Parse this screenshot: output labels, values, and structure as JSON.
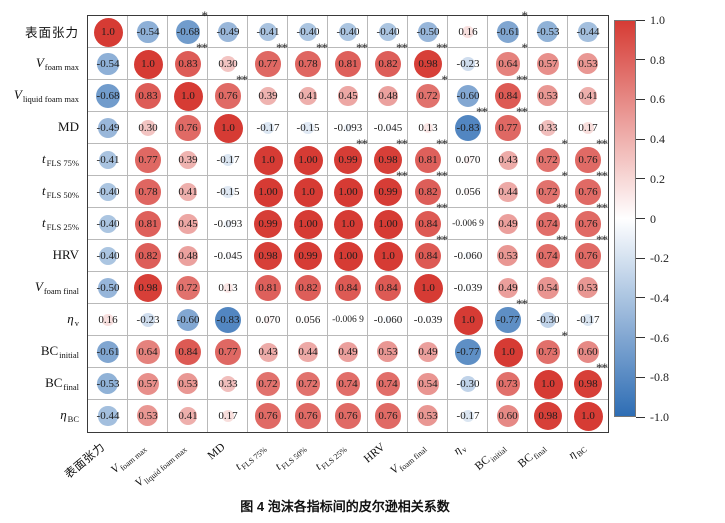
{
  "chart_data": {
    "type": "heatmap",
    "variant": "correlation-bubble-matrix",
    "title": "图 4  泡沫各指标间的皮尔逊相关系数",
    "legend_position": "right",
    "value_range": [
      -1,
      1
    ],
    "colors": {
      "positive_max": "#D63B34",
      "negative_max": "#2E6DB4",
      "zero": "#FFFFFF"
    },
    "labels": [
      {
        "text": "表面张力",
        "sub": "",
        "italic": false,
        "cjk": true
      },
      {
        "text": "V",
        "sub": "foam max",
        "italic": true,
        "cjk": false
      },
      {
        "text": "V",
        "sub": "liquid foam max",
        "italic": true,
        "cjk": false
      },
      {
        "text": "MD",
        "sub": "",
        "italic": false,
        "cjk": false
      },
      {
        "text": "t",
        "sub": "FLS 75%",
        "italic": true,
        "cjk": false
      },
      {
        "text": "t",
        "sub": "FLS 50%",
        "italic": true,
        "cjk": false
      },
      {
        "text": "t",
        "sub": "FLS 25%",
        "italic": true,
        "cjk": false
      },
      {
        "text": "HRV",
        "sub": "",
        "italic": false,
        "cjk": false
      },
      {
        "text": "V",
        "sub": "foam final",
        "italic": true,
        "cjk": false
      },
      {
        "text": "η",
        "sub": "v",
        "italic": true,
        "cjk": false
      },
      {
        "text": "BC",
        "sub": "initial",
        "italic": false,
        "cjk": false
      },
      {
        "text": "BC",
        "sub": "final",
        "italic": false,
        "cjk": false
      },
      {
        "text": "η",
        "sub": "BC",
        "italic": true,
        "cjk": false
      }
    ],
    "matrix_display": [
      [
        "1.0",
        "-0.54",
        "-0.68",
        "-0.49",
        "-0.41",
        "-0.40",
        "-0.40",
        "-0.40",
        "-0.50",
        "0.16",
        "-0.61",
        "-0.53",
        "-0.44"
      ],
      [
        "-0.54",
        "1.0",
        "0.83",
        "0.30",
        "0.77",
        "0.78",
        "0.81",
        "0.82",
        "0.98",
        "-0.23",
        "0.64",
        "0.57",
        "0.53"
      ],
      [
        "-0.68",
        "0.83",
        "1.0",
        "0.76",
        "0.39",
        "0.41",
        "0.45",
        "0.48",
        "0.72",
        "-0.60",
        "0.84",
        "0.53",
        "0.41"
      ],
      [
        "-0.49",
        "0.30",
        "0.76",
        "1.0",
        "-0.17",
        "-0.15",
        "-0.093",
        "-0.045",
        "0.13",
        "-0.83",
        "0.77",
        "0.33",
        "0.17"
      ],
      [
        "-0.41",
        "0.77",
        "0.39",
        "-0.17",
        "1.0",
        "1.00",
        "0.99",
        "0.98",
        "0.81",
        "0.070",
        "0.43",
        "0.72",
        "0.76"
      ],
      [
        "-0.40",
        "0.78",
        "0.41",
        "-0.15",
        "1.00",
        "1.0",
        "1.00",
        "0.99",
        "0.82",
        "0.056",
        "0.44",
        "0.72",
        "0.76"
      ],
      [
        "-0.40",
        "0.81",
        "0.45",
        "-0.093",
        "0.99",
        "1.00",
        "1.0",
        "1.00",
        "0.84",
        "-0.006 9",
        "0.49",
        "0.74",
        "0.76"
      ],
      [
        "-0.40",
        "0.82",
        "0.48",
        "-0.045",
        "0.98",
        "0.99",
        "1.00",
        "1.0",
        "0.84",
        "-0.060",
        "0.53",
        "0.74",
        "0.76"
      ],
      [
        "-0.50",
        "0.98",
        "0.72",
        "0.13",
        "0.81",
        "0.82",
        "0.84",
        "0.84",
        "1.0",
        "-0.039",
        "0.49",
        "0.54",
        "0.53"
      ],
      [
        "0.16",
        "-0.23",
        "-0.60",
        "-0.83",
        "0.070",
        "0.056",
        "-0.006 9",
        "-0.060",
        "-0.039",
        "1.0",
        "-0.77",
        "-0.30",
        "-0.17"
      ],
      [
        "-0.61",
        "0.64",
        "0.84",
        "0.77",
        "0.43",
        "0.44",
        "0.49",
        "0.53",
        "0.49",
        "-0.77",
        "1.0",
        "0.73",
        "0.60"
      ],
      [
        "-0.53",
        "0.57",
        "0.53",
        "0.33",
        "0.72",
        "0.72",
        "0.74",
        "0.74",
        "0.54",
        "-0.30",
        "0.73",
        "1.0",
        "0.98"
      ],
      [
        "-0.44",
        "0.53",
        "0.41",
        "0.17",
        "0.76",
        "0.76",
        "0.76",
        "0.76",
        "0.53",
        "-0.17",
        "0.60",
        "0.98",
        "1.0"
      ]
    ],
    "significance": [
      [
        "",
        "",
        "*",
        "",
        "",
        "",
        "",
        "",
        "",
        "",
        "*",
        "",
        ""
      ],
      [
        "",
        "",
        "**",
        "",
        "**",
        "**",
        "**",
        "**",
        "**",
        "",
        "*",
        "",
        ""
      ],
      [
        "",
        "",
        "",
        "**",
        "",
        "",
        "",
        "",
        "*",
        "",
        "**",
        "",
        ""
      ],
      [
        "",
        "",
        "",
        "",
        "",
        "",
        "",
        "",
        "",
        "**",
        "**",
        "",
        ""
      ],
      [
        "",
        "",
        "",
        "",
        "",
        "",
        "**",
        "**",
        "**",
        "",
        "",
        "*",
        "**"
      ],
      [
        "",
        "",
        "",
        "",
        "",
        "",
        "",
        "**",
        "**",
        "",
        "",
        "*",
        "**"
      ],
      [
        "",
        "",
        "",
        "",
        "",
        "",
        "",
        "",
        "**",
        "",
        "",
        "**",
        "**"
      ],
      [
        "",
        "",
        "",
        "",
        "",
        "",
        "",
        "",
        "**",
        "",
        "",
        "**",
        "**"
      ],
      [
        "",
        "",
        "",
        "",
        "",
        "",
        "",
        "",
        "",
        "",
        "",
        "",
        ""
      ],
      [
        "",
        "",
        "",
        "",
        "",
        "",
        "",
        "",
        "",
        "",
        "**",
        "",
        ""
      ],
      [
        "",
        "",
        "",
        "",
        "",
        "",
        "",
        "",
        "",
        "",
        "",
        "*",
        ""
      ],
      [
        "",
        "",
        "",
        "",
        "",
        "",
        "",
        "",
        "",
        "",
        "",
        "",
        "**"
      ],
      [
        "",
        "",
        "",
        "",
        "",
        "",
        "",
        "",
        "",
        "",
        "",
        "",
        ""
      ]
    ],
    "colorbar_ticks": [
      "1.0",
      "0.8",
      "0.6",
      "0.4",
      "0.2",
      "0",
      "-0.2",
      "-0.4",
      "-0.6",
      "-0.8",
      "-1.0"
    ]
  }
}
